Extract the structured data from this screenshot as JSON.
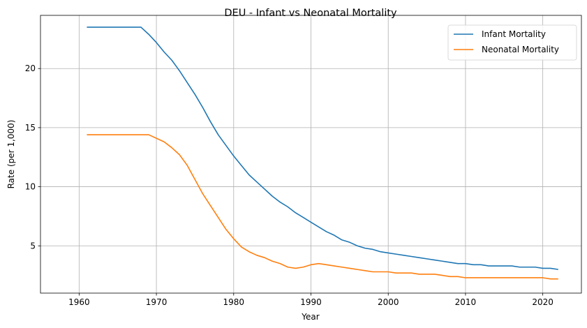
{
  "chart_data": {
    "type": "line",
    "title": "DEU - Infant vs Neonatal Mortality",
    "xlabel": "Year",
    "ylabel": "Rate (per 1,000)",
    "xlim": [
      1955,
      2025
    ],
    "ylim": [
      1.0,
      24.5
    ],
    "xticks": [
      1960,
      1970,
      1980,
      1990,
      2000,
      2010,
      2020
    ],
    "yticks": [
      5,
      10,
      15,
      20
    ],
    "grid": true,
    "legend_position": "top-right",
    "x": [
      1961,
      1962,
      1963,
      1964,
      1965,
      1966,
      1967,
      1968,
      1969,
      1970,
      1971,
      1972,
      1973,
      1974,
      1975,
      1976,
      1977,
      1978,
      1979,
      1980,
      1981,
      1982,
      1983,
      1984,
      1985,
      1986,
      1987,
      1988,
      1989,
      1990,
      1991,
      1992,
      1993,
      1994,
      1995,
      1996,
      1997,
      1998,
      1999,
      2000,
      2001,
      2002,
      2003,
      2004,
      2005,
      2006,
      2007,
      2008,
      2009,
      2010,
      2011,
      2012,
      2013,
      2014,
      2015,
      2016,
      2017,
      2018,
      2019,
      2020,
      2021,
      2022
    ],
    "series": [
      {
        "name": "Infant Mortality",
        "color": "#1f77b4",
        "values": [
          23.5,
          23.5,
          23.5,
          23.5,
          23.5,
          23.5,
          23.5,
          23.5,
          22.9,
          22.2,
          21.4,
          20.7,
          19.8,
          18.8,
          17.8,
          16.7,
          15.5,
          14.4,
          13.5,
          12.6,
          11.8,
          11.0,
          10.4,
          9.8,
          9.2,
          8.7,
          8.3,
          7.8,
          7.4,
          7.0,
          6.6,
          6.2,
          5.9,
          5.5,
          5.3,
          5.0,
          4.8,
          4.7,
          4.5,
          4.4,
          4.3,
          4.2,
          4.1,
          4.0,
          3.9,
          3.8,
          3.7,
          3.6,
          3.5,
          3.5,
          3.4,
          3.4,
          3.3,
          3.3,
          3.3,
          3.3,
          3.2,
          3.2,
          3.2,
          3.1,
          3.1,
          3.0
        ]
      },
      {
        "name": "Neonatal Mortality",
        "color": "#ff7f0e",
        "values": [
          14.4,
          14.4,
          14.4,
          14.4,
          14.4,
          14.4,
          14.4,
          14.4,
          14.4,
          14.1,
          13.8,
          13.3,
          12.7,
          11.8,
          10.6,
          9.4,
          8.4,
          7.4,
          6.4,
          5.6,
          4.9,
          4.5,
          4.2,
          4.0,
          3.7,
          3.5,
          3.2,
          3.1,
          3.2,
          3.4,
          3.5,
          3.4,
          3.3,
          3.2,
          3.1,
          3.0,
          2.9,
          2.8,
          2.8,
          2.8,
          2.7,
          2.7,
          2.7,
          2.6,
          2.6,
          2.6,
          2.5,
          2.4,
          2.4,
          2.3,
          2.3,
          2.3,
          2.3,
          2.3,
          2.3,
          2.3,
          2.3,
          2.3,
          2.3,
          2.3,
          2.2,
          2.2
        ]
      }
    ]
  }
}
